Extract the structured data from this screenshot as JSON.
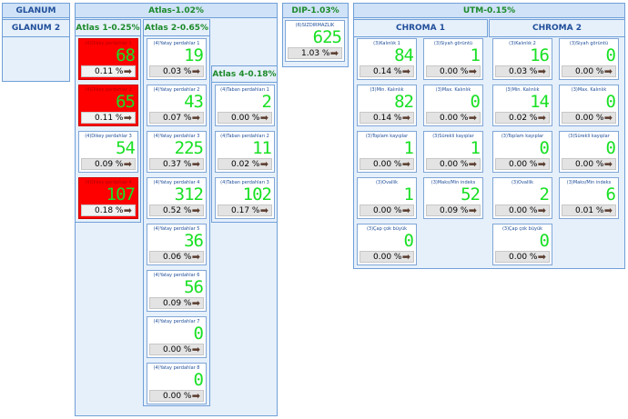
{
  "groups": {
    "glanum": "GLANUM",
    "glanum2": "GLANUM 2",
    "atlas": "Atlas-1.02%",
    "atlas1": "Atlas 1-0.25%",
    "atlas2": "Atlas 2-0.65%",
    "atlas4": "Atlas 4-0.18%",
    "dip": "DIP-1.03%",
    "utm": "UTM-0.15%",
    "chroma1": "CHROMA 1",
    "chroma2": "CHROMA 2"
  },
  "cards": {
    "a1_1": {
      "label": "(4)Dikey perdahlar 1",
      "value": "68",
      "pct": "0.11 %"
    },
    "a1_2": {
      "label": "(4)Dikey perdahlar 2",
      "value": "65",
      "pct": "0.11 %"
    },
    "a1_3": {
      "label": "(4)Dikey perdahlar 3",
      "value": "54",
      "pct": "0.09 %"
    },
    "a1_4": {
      "label": "(4)Dikey perdahlar 4",
      "value": "107",
      "pct": "0.18 %"
    },
    "a2_1": {
      "label": "(4)Yatay perdahlar 1",
      "value": "19",
      "pct": "0.03 %"
    },
    "a2_2": {
      "label": "(4)Yatay perdahlar 2",
      "value": "43",
      "pct": "0.07 %"
    },
    "a2_3": {
      "label": "(4)Yatay perdahlar 3",
      "value": "225",
      "pct": "0.37 %"
    },
    "a2_4": {
      "label": "(4)Yatay perdahlar 4",
      "value": "312",
      "pct": "0.52 %"
    },
    "a2_5": {
      "label": "(4)Yatay perdahlar 5",
      "value": "36",
      "pct": "0.06 %"
    },
    "a2_6": {
      "label": "(4)Yatay perdahlar 6",
      "value": "56",
      "pct": "0.09 %"
    },
    "a2_7": {
      "label": "(4)Yatay perdahlar 7",
      "value": "0",
      "pct": "0.00 %"
    },
    "a2_8": {
      "label": "(4)Yatay perdahlar 8",
      "value": "0",
      "pct": "0.00 %"
    },
    "a4_1": {
      "label": "(4)Taban perdahları 1",
      "value": "2",
      "pct": "0.00 %"
    },
    "a4_2": {
      "label": "(4)Taban perdahları 2",
      "value": "11",
      "pct": "0.02 %"
    },
    "a4_3": {
      "label": "(4)Taban perdahları 3",
      "value": "102",
      "pct": "0.17 %"
    },
    "dip_1": {
      "label": "(6)SIZDIRMAZLIK",
      "value": "625",
      "pct": "1.03 %"
    },
    "c1_1": {
      "label": "(3)Kalınlık 1",
      "value": "84",
      "pct": "0.14 %"
    },
    "c1_2": {
      "label": "(3)Siyah görüntü",
      "value": "1",
      "pct": "0.00 %"
    },
    "c1_3": {
      "label": "(3)Min. Kalınlık",
      "value": "82",
      "pct": "0.14 %"
    },
    "c1_4": {
      "label": "(3)Max. Kalınlık",
      "value": "0",
      "pct": "0.00 %"
    },
    "c1_5": {
      "label": "(3)Toplam kayıplar",
      "value": "1",
      "pct": "0.00 %"
    },
    "c1_6": {
      "label": "(3)Sürekli kayıplar",
      "value": "1",
      "pct": "0.00 %"
    },
    "c1_7": {
      "label": "(3)Ovallik",
      "value": "1",
      "pct": "0.00 %"
    },
    "c1_8": {
      "label": "(3)Maks/Min indeks",
      "value": "52",
      "pct": "0.09 %"
    },
    "c1_9": {
      "label": "(3)Çap çok büyük",
      "value": "0",
      "pct": "0.00 %"
    },
    "c2_1": {
      "label": "(3)Kalınlık 2",
      "value": "16",
      "pct": "0.03 %"
    },
    "c2_2": {
      "label": "(3)Siyah görüntü",
      "value": "0",
      "pct": "0.00 %"
    },
    "c2_3": {
      "label": "(3)Min. Kalınlık",
      "value": "14",
      "pct": "0.02 %"
    },
    "c2_4": {
      "label": "(3)Max. Kalınlık",
      "value": "0",
      "pct": "0.00 %"
    },
    "c2_5": {
      "label": "(3)Toplam kayıplar",
      "value": "0",
      "pct": "0.00 %"
    },
    "c2_6": {
      "label": "(3)Sürekli kayıplar",
      "value": "0",
      "pct": "0.00 %"
    },
    "c2_7": {
      "label": "(3)Ovallik",
      "value": "2",
      "pct": "0.00 %"
    },
    "c2_8": {
      "label": "(3)Maks/Min indeks",
      "value": "6",
      "pct": "0.01 %"
    },
    "c2_9": {
      "label": "(3)Çap çok büyük",
      "value": "0",
      "pct": "0.00 %"
    }
  },
  "icons": {
    "go": "arrow-right-icon"
  },
  "colors": {
    "alarm": "#ff0000",
    "digits": "#19e024",
    "header_text": "#1f4e9a",
    "atlas_text": "#1c8a2a"
  }
}
